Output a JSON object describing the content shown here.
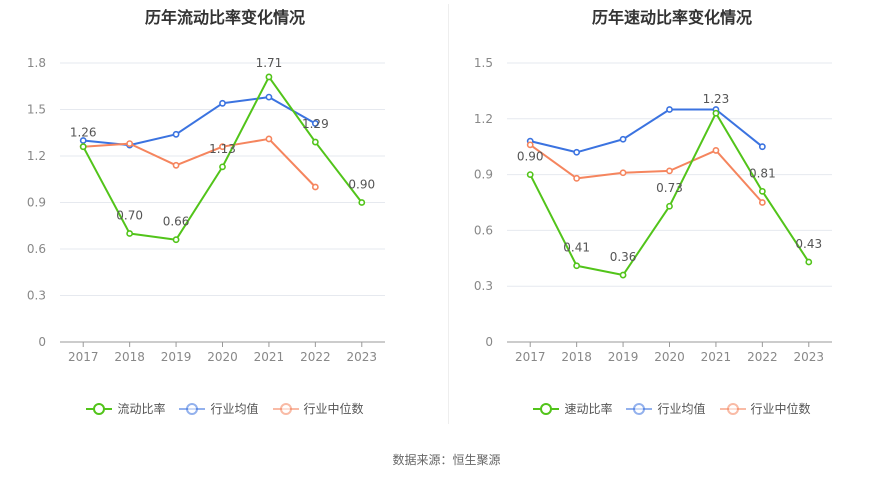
{
  "source": "数据来源：恒生聚源",
  "chart_data": [
    {
      "type": "line",
      "title": "历年流动比率变化情况",
      "categories": [
        "2017",
        "2018",
        "2019",
        "2020",
        "2021",
        "2022",
        "2023"
      ],
      "ylim": [
        0,
        1.8
      ],
      "yticks": [
        "0",
        "0.3",
        "0.6",
        "0.9",
        "1.2",
        "1.5",
        "1.8"
      ],
      "grid": true,
      "legend_position": "bottom",
      "series": [
        {
          "name": "流动比率",
          "color": "#52c41a",
          "values": [
            1.26,
            0.7,
            0.66,
            1.13,
            1.71,
            1.29,
            0.9
          ],
          "labels": [
            "1.26",
            "0.70",
            "0.66",
            "1.13",
            "1.71",
            "1.29",
            "0.90"
          ]
        },
        {
          "name": "行业均值",
          "color": "#3b73e0",
          "values": [
            1.3,
            1.27,
            1.34,
            1.54,
            1.58,
            1.41,
            null
          ]
        },
        {
          "name": "行业中位数",
          "color": "#f5855e",
          "values": [
            1.26,
            1.28,
            1.14,
            1.26,
            1.31,
            1.0,
            null
          ]
        }
      ]
    },
    {
      "type": "line",
      "title": "历年速动比率变化情况",
      "categories": [
        "2017",
        "2018",
        "2019",
        "2020",
        "2021",
        "2022",
        "2023"
      ],
      "ylim": [
        0,
        1.5
      ],
      "yticks": [
        "0",
        "0.3",
        "0.6",
        "0.9",
        "1.2",
        "1.5"
      ],
      "grid": true,
      "legend_position": "bottom",
      "series": [
        {
          "name": "速动比率",
          "color": "#52c41a",
          "values": [
            0.9,
            0.41,
            0.36,
            0.73,
            1.23,
            0.81,
            0.43
          ],
          "labels": [
            "0.90",
            "0.41",
            "0.36",
            "0.73",
            "1.23",
            "0.81",
            "0.43"
          ]
        },
        {
          "name": "行业均值",
          "color": "#3b73e0",
          "values": [
            1.08,
            1.02,
            1.09,
            1.25,
            1.25,
            1.05,
            null
          ]
        },
        {
          "name": "行业中位数",
          "color": "#f5855e",
          "values": [
            1.06,
            0.88,
            0.91,
            0.92,
            1.03,
            0.75,
            null
          ]
        }
      ]
    }
  ]
}
